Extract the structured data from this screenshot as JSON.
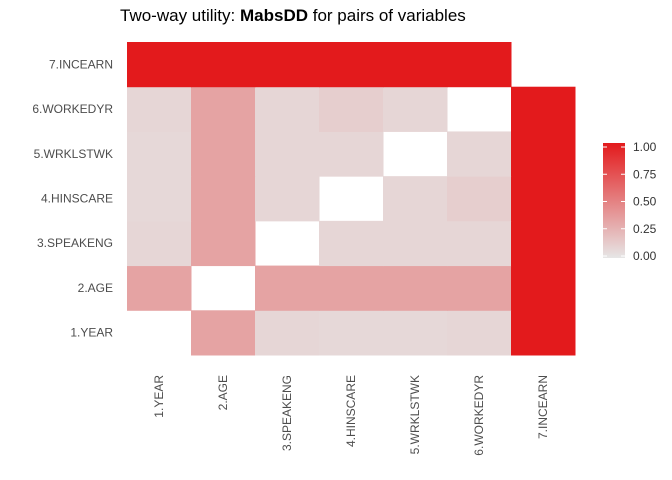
{
  "chart_data": {
    "type": "heatmap",
    "title_prefix": "Two-way utility: ",
    "title_bold": "MabsDD",
    "title_suffix": " for pairs of variables",
    "x_labels": [
      "1.YEAR",
      "2.AGE",
      "3.SPEAKENG",
      "4.HINSCARE",
      "5.WRKLSTWK",
      "6.WORKEDYR",
      "7.INCEARN"
    ],
    "y_labels": [
      "1.YEAR",
      "2.AGE",
      "3.SPEAKENG",
      "4.HINSCARE",
      "5.WRKLSTWK",
      "6.WORKEDYR",
      "7.INCEARN"
    ],
    "values": [
      [
        null,
        0.33,
        0.08,
        0.07,
        0.07,
        0.08,
        1.0
      ],
      [
        0.33,
        null,
        0.33,
        0.33,
        0.33,
        0.33,
        1.0
      ],
      [
        0.08,
        0.33,
        null,
        0.08,
        0.08,
        0.08,
        1.0
      ],
      [
        0.07,
        0.33,
        0.08,
        null,
        0.08,
        0.12,
        1.0
      ],
      [
        0.07,
        0.33,
        0.08,
        0.08,
        null,
        0.08,
        1.0
      ],
      [
        0.08,
        0.33,
        0.08,
        0.12,
        0.08,
        null,
        1.0
      ],
      [
        1.0,
        1.0,
        1.0,
        1.0,
        1.0,
        1.0,
        null
      ]
    ],
    "color_scale": {
      "low": "#e6e6e6",
      "high": "#e31a1c",
      "min": 0,
      "max": 1
    },
    "legend": {
      "placement": "right",
      "ticks": [
        "0.00",
        "0.25",
        "0.50",
        "0.75",
        "1.00"
      ],
      "tick_values": [
        0,
        0.25,
        0.5,
        0.75,
        1.0
      ]
    },
    "xlabel": "",
    "ylabel": ""
  }
}
